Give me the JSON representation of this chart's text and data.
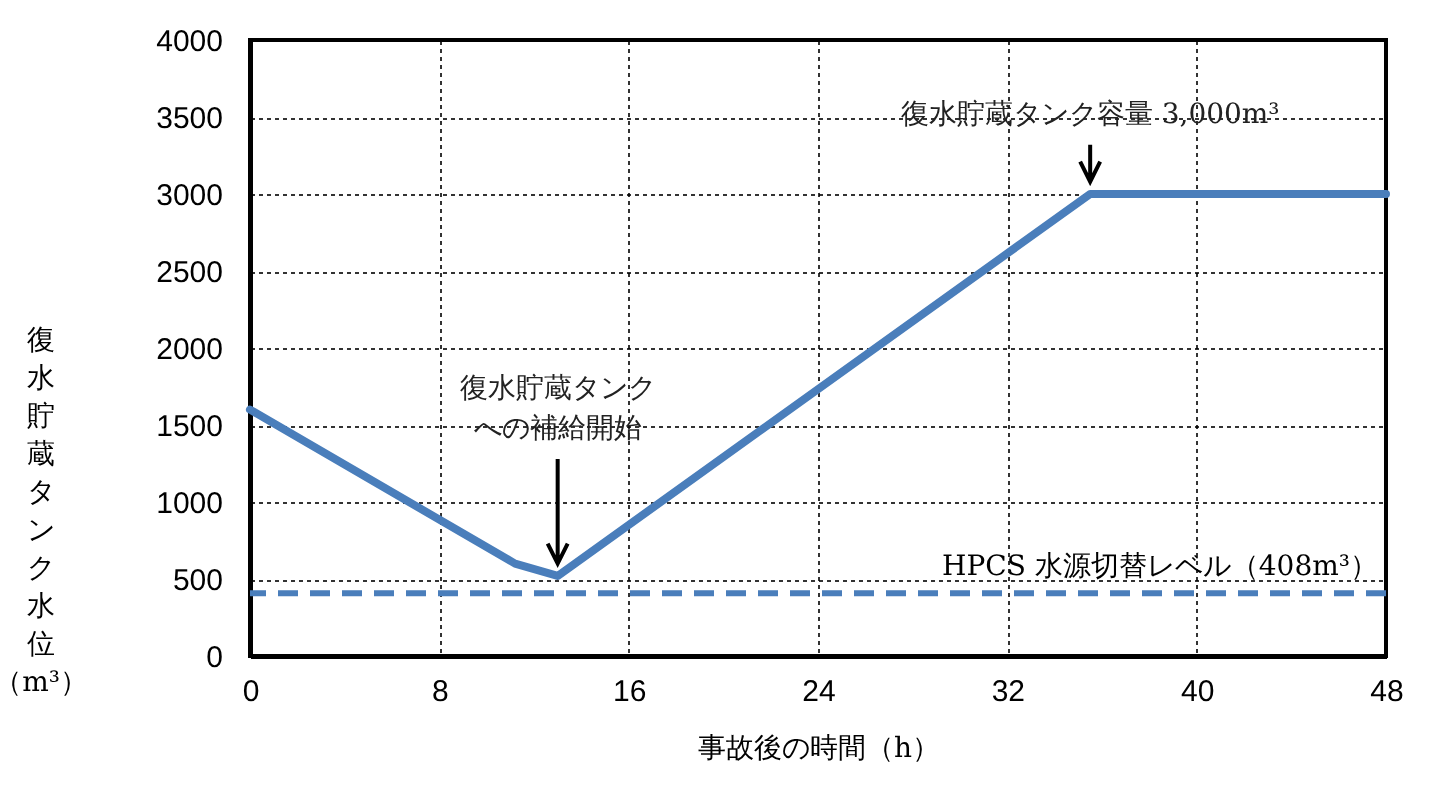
{
  "chart_data": {
    "type": "line",
    "xlabel": "事故後の時間（h）",
    "ylabel": "復水貯蔵タンク水位（m³）",
    "x": [
      0,
      11.2,
      13,
      35.5,
      48
    ],
    "series": [
      {
        "color": "#4a7ebb",
        "values": [
          1600,
          600,
          520,
          3000,
          3000
        ]
      }
    ],
    "xlim": [
      0,
      48
    ],
    "xticks": [
      0,
      8,
      16,
      24,
      32,
      40,
      48
    ],
    "ylim": [
      0,
      4000
    ],
    "yticks": [
      0,
      500,
      1000,
      1500,
      2000,
      2500,
      3000,
      3500,
      4000
    ],
    "grid": true,
    "marker": "none",
    "line_style": "solid",
    "ref_lines": [
      {
        "axis": "y",
        "value": 408,
        "label": "HPCS 水源切替レベル（408m³）",
        "color": "#4a7ebb",
        "line_style": "dashed"
      }
    ],
    "annotations": [
      {
        "text": "復水貯蔵タンクへの補給開始",
        "x": 13,
        "y": 520
      },
      {
        "text": "復水貯蔵タンク容量 3,000m³",
        "x": 35.5,
        "y": 3000
      }
    ]
  }
}
